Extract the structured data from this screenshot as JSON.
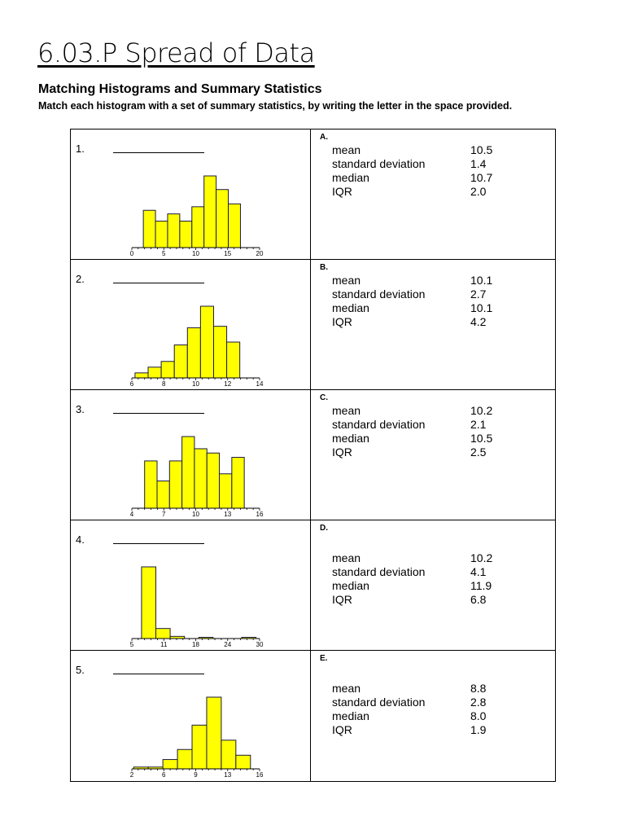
{
  "title": "6.03.P Spread of Data",
  "heading": "Matching Histograms and Summary Statistics",
  "instructions": "Match each histogram with a set of summary statistics, by writing the letter in the space provided.",
  "bar_color": "#FFFF00",
  "histograms": [
    {
      "number": "1.",
      "blank": "",
      "axis": [
        0,
        20
      ],
      "ticks": [
        "0",
        "5",
        "10",
        "15",
        "20"
      ],
      "bin_start": 1.8,
      "bin_width": 1.9,
      "relative_heights": [
        5.2,
        3.7,
        4.7,
        3.7,
        5.7,
        10,
        8.1,
        6.1
      ]
    },
    {
      "number": "2.",
      "blank": "",
      "axis": [
        6,
        14
      ],
      "ticks": [
        "6",
        "8",
        "10",
        "12",
        "14"
      ],
      "bin_start": 6.2,
      "bin_width": 0.82,
      "relative_heights": [
        0.7,
        1.5,
        2.3,
        4.6,
        7,
        10,
        7.2,
        5
      ]
    },
    {
      "number": "3.",
      "blank": "",
      "axis": [
        4,
        16
      ],
      "ticks": [
        "4",
        "7",
        "10",
        "13",
        "16"
      ],
      "bin_start": 5.2,
      "bin_width": 1.17,
      "relative_heights": [
        6.6,
        3.8,
        6.6,
        10,
        8.3,
        7.7,
        4.8,
        7.1
      ]
    },
    {
      "number": "4.",
      "blank": "",
      "axis": [
        5,
        30
      ],
      "ticks": [
        "5",
        "11",
        "18",
        "24",
        "30"
      ],
      "bin_start": 6.9,
      "bin_width": 2.8,
      "relative_heights": [
        10,
        1.4,
        0.3,
        0,
        0.12,
        0,
        0,
        0.12
      ]
    },
    {
      "number": "5.",
      "blank": "",
      "axis": [
        2,
        16
      ],
      "ticks": [
        "2",
        "6",
        "9",
        "13",
        "16"
      ],
      "bin_start": 2.2,
      "bin_width": 1.6,
      "relative_heights": [
        0.25,
        0.25,
        1.3,
        2.7,
        6.1,
        10,
        4,
        1.9
      ]
    }
  ],
  "stat_labels": [
    "mean",
    "standard deviation",
    "median",
    "IQR"
  ],
  "stat_sets": [
    {
      "letter": "A.",
      "values": [
        "10.5",
        "1.4",
        "10.7",
        "2.0"
      ]
    },
    {
      "letter": "B.",
      "values": [
        "10.1",
        "2.7",
        "10.1",
        "4.2"
      ]
    },
    {
      "letter": "C.",
      "values": [
        "10.2",
        "2.1",
        "10.5",
        " 2.5"
      ]
    },
    {
      "letter": "D.",
      "values": [
        "10.2",
        "4.1",
        "11.9",
        "6.8"
      ]
    },
    {
      "letter": "E.",
      "values": [
        "8.8",
        "2.8",
        "8.0",
        "1.9"
      ]
    }
  ]
}
